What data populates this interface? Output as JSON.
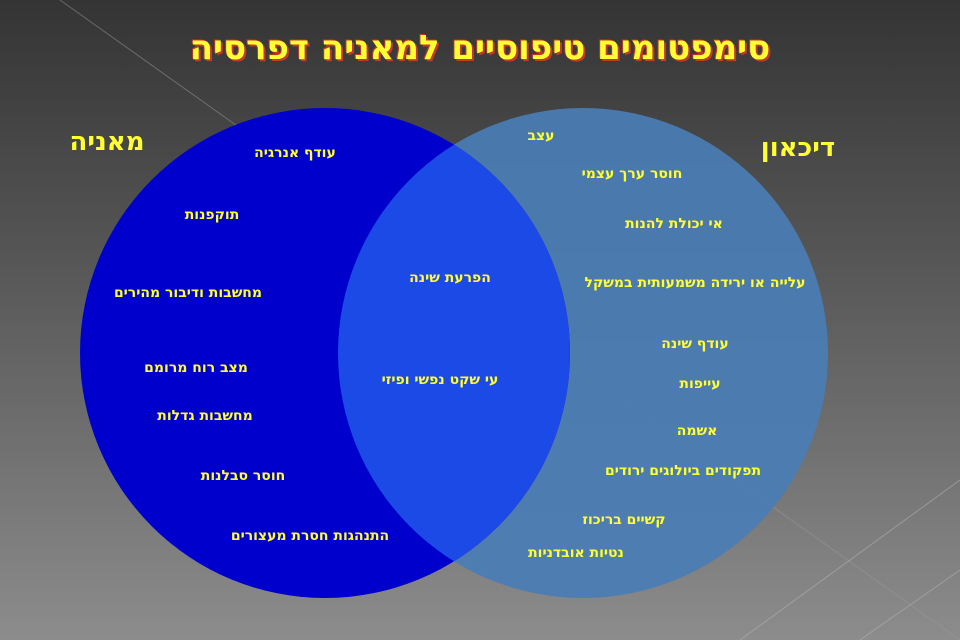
{
  "title": "סימפטומים טיפוסיים למאניה דפרסיה",
  "colors": {
    "mania": "#0000cc",
    "depression": "#4a7db5",
    "overlap": "#1c4ae6",
    "text": "#ffff33"
  },
  "mania": {
    "label": "מאניה",
    "items": [
      "עודף אנרגיה",
      "תוקפנות",
      "מחשבות ודיבור מהירים",
      "מצב רוח מרומם",
      "מחשבות גדלות",
      "חוסר סבלנות",
      "התנהגות חסרת מעצורים"
    ]
  },
  "shared": {
    "items": [
      "הפרעת שינה",
      "עי שקט נפשי ופיזי"
    ]
  },
  "depression": {
    "label": "דיכאון",
    "items": [
      "עצב",
      "חוסר ערך עצמי",
      "אי יכולת להנות",
      "עלייה או ירידה משמעותית במשקל",
      "עודף שינה",
      "עייפות",
      "אשמה",
      "תפקודים ביולוגים ירודים",
      "קשיים בריכוז",
      "נטיות אובדניות"
    ]
  }
}
